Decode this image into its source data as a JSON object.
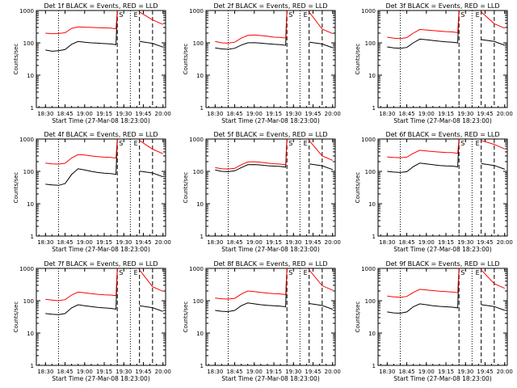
{
  "figure": {
    "background": "#ffffff",
    "ylabel": "Counts/sec",
    "xlabel": "Start Time (27-Mar-08 18:23:00)",
    "event_color": "#000000",
    "lld_color": "#ff0000",
    "markers": [
      "S",
      "E"
    ]
  },
  "chart_data": [
    {
      "type": "line",
      "title": "Det 1f BLACK = Events, RED = LLD",
      "xlabel": "Start Time (27-Mar-08 18:23:00)",
      "ylabel": "Counts/sec",
      "ylim": [
        1,
        1000
      ],
      "yscale": "log",
      "x": [
        "18:30",
        "18:35",
        "18:40",
        "18:45",
        "18:50",
        "18:55",
        "19:00",
        "19:05",
        "19:10",
        "19:15",
        "19:20"
      ],
      "xticks": [
        "18:30",
        "18:45",
        "19:00",
        "19:15",
        "19:30",
        "19:45",
        "20:00"
      ],
      "series": [
        {
          "name": "BLACK",
          "values": [
            60,
            55,
            57,
            62,
            90,
            110,
            105,
            100,
            98,
            95,
            92
          ]
        },
        {
          "name": "RED",
          "values": [
            200,
            190,
            195,
            205,
            280,
            310,
            305,
            300,
            295,
            290,
            285
          ]
        }
      ]
    },
    {
      "type": "line",
      "title": "Det 2f BLACK = Events, RED = LLD",
      "xlabel": "Start Time (27-Mar-08 18:23:00)",
      "ylabel": "Counts/sec",
      "ylim": [
        1,
        1000
      ],
      "yscale": "log",
      "x": [
        "18:30",
        "18:35",
        "18:40",
        "18:45",
        "18:50",
        "18:55",
        "19:00",
        "19:05",
        "19:10",
        "19:15",
        "19:20"
      ],
      "xticks": [
        "18:30",
        "18:45",
        "19:00",
        "19:15",
        "19:30",
        "19:45",
        "20:00"
      ],
      "series": [
        {
          "name": "BLACK",
          "values": [
            70,
            65,
            63,
            68,
            85,
            100,
            102,
            98,
            94,
            90,
            88
          ]
        },
        {
          "name": "RED",
          "values": [
            110,
            100,
            98,
            105,
            140,
            170,
            175,
            168,
            160,
            150,
            148
          ]
        }
      ]
    },
    {
      "type": "line",
      "title": "Det 3f BLACK = Events, RED = LLD",
      "xlabel": "Start Time (27-Mar-08 18:23:00)",
      "ylabel": "Counts/sec",
      "ylim": [
        1,
        1000
      ],
      "yscale": "log",
      "x": [
        "18:30",
        "18:35",
        "18:40",
        "18:45",
        "18:50",
        "18:55",
        "19:00",
        "19:05",
        "19:10",
        "19:15",
        "19:20"
      ],
      "xticks": [
        "18:30",
        "18:45",
        "19:00",
        "19:15",
        "19:30",
        "19:45",
        "20:00"
      ],
      "series": [
        {
          "name": "BLACK",
          "values": [
            75,
            70,
            68,
            72,
            100,
            130,
            125,
            118,
            112,
            108,
            105
          ]
        },
        {
          "name": "RED",
          "values": [
            150,
            140,
            135,
            145,
            200,
            260,
            250,
            240,
            230,
            222,
            218
          ]
        }
      ]
    },
    {
      "type": "line",
      "title": "Det 4f BLACK = Events, RED = LLD",
      "xlabel": "Start Time (27-Mar-08 18:23:00)",
      "ylabel": "Counts/sec",
      "ylim": [
        1,
        1000
      ],
      "yscale": "log",
      "x": [
        "18:30",
        "18:35",
        "18:40",
        "18:45",
        "18:50",
        "18:55",
        "19:00",
        "19:05",
        "19:10",
        "19:15",
        "19:20"
      ],
      "xticks": [
        "18:30",
        "18:45",
        "19:00",
        "19:15",
        "19:30",
        "19:45",
        "20:00"
      ],
      "series": [
        {
          "name": "BLACK",
          "values": [
            40,
            38,
            37,
            42,
            80,
            120,
            110,
            100,
            92,
            88,
            85
          ]
        },
        {
          "name": "RED",
          "values": [
            180,
            170,
            168,
            178,
            260,
            330,
            320,
            300,
            285,
            275,
            270
          ]
        }
      ]
    },
    {
      "type": "line",
      "title": "Det 5f BLACK = Events, RED = LLD",
      "xlabel": "Start Time (27-Mar-08 18:23:00)",
      "ylabel": "Counts/sec",
      "ylim": [
        1,
        1000
      ],
      "yscale": "log",
      "x": [
        "18:30",
        "18:35",
        "18:40",
        "18:45",
        "18:50",
        "18:55",
        "19:00",
        "19:05",
        "19:10",
        "19:15",
        "19:20"
      ],
      "xticks": [
        "18:30",
        "18:45",
        "19:00",
        "19:15",
        "19:30",
        "19:45",
        "20:00"
      ],
      "series": [
        {
          "name": "BLACK",
          "values": [
            110,
            100,
            98,
            104,
            130,
            160,
            162,
            158,
            150,
            145,
            142
          ]
        },
        {
          "name": "RED",
          "values": [
            130,
            120,
            118,
            124,
            160,
            195,
            198,
            190,
            180,
            172,
            168
          ]
        }
      ]
    },
    {
      "type": "line",
      "title": "Det 6f BLACK = Events, RED = LLD",
      "xlabel": "Start Time (27-Mar-08 18:23:00)",
      "ylabel": "Counts/sec",
      "ylim": [
        1,
        1000
      ],
      "yscale": "log",
      "x": [
        "18:30",
        "18:35",
        "18:40",
        "18:45",
        "18:50",
        "18:55",
        "19:00",
        "19:05",
        "19:10",
        "19:15",
        "19:20"
      ],
      "xticks": [
        "18:30",
        "18:45",
        "19:00",
        "19:15",
        "19:30",
        "19:45",
        "20:00"
      ],
      "series": [
        {
          "name": "BLACK",
          "values": [
            100,
            95,
            92,
            98,
            140,
            180,
            170,
            160,
            152,
            148,
            145
          ]
        },
        {
          "name": "RED",
          "values": [
            280,
            270,
            265,
            275,
            360,
            450,
            430,
            410,
            395,
            385,
            380
          ]
        }
      ]
    },
    {
      "type": "line",
      "title": "Det 7f BLACK = Events, RED = LLD",
      "xlabel": "Start Time (27-Mar-08 18:23:00)",
      "ylabel": "Counts/sec",
      "ylim": [
        1,
        1000
      ],
      "yscale": "log",
      "x": [
        "18:30",
        "18:35",
        "18:40",
        "18:45",
        "18:50",
        "18:55",
        "19:00",
        "19:05",
        "19:10",
        "19:15",
        "19:20"
      ],
      "xticks": [
        "18:30",
        "18:45",
        "19:00",
        "19:15",
        "19:30",
        "19:45",
        "20:00"
      ],
      "series": [
        {
          "name": "BLACK",
          "values": [
            40,
            38,
            37,
            40,
            60,
            75,
            70,
            66,
            62,
            60,
            58
          ]
        },
        {
          "name": "RED",
          "values": [
            110,
            105,
            100,
            108,
            150,
            185,
            175,
            165,
            158,
            152,
            150
          ]
        }
      ]
    },
    {
      "type": "line",
      "title": "Det 8f BLACK = Events, RED = LLD",
      "xlabel": "Start Time (27-Mar-08 18:23:00)",
      "ylabel": "Counts/sec",
      "ylim": [
        1,
        1000
      ],
      "yscale": "log",
      "x": [
        "18:30",
        "18:35",
        "18:40",
        "18:45",
        "18:50",
        "18:55",
        "19:00",
        "19:05",
        "19:10",
        "19:15",
        "19:20"
      ],
      "xticks": [
        "18:30",
        "18:45",
        "19:00",
        "19:15",
        "19:30",
        "19:45",
        "20:00"
      ],
      "series": [
        {
          "name": "BLACK",
          "values": [
            50,
            47,
            46,
            50,
            70,
            85,
            80,
            75,
            72,
            70,
            68
          ]
        },
        {
          "name": "RED",
          "values": [
            120,
            115,
            112,
            118,
            160,
            200,
            190,
            180,
            172,
            166,
            162
          ]
        }
      ]
    },
    {
      "type": "line",
      "title": "Det 9f BLACK = Events, RED = LLD",
      "xlabel": "Start Time (27-Mar-08 18:23:00)",
      "ylabel": "Counts/sec",
      "ylim": [
        1,
        1000
      ],
      "yscale": "log",
      "x": [
        "18:30",
        "18:35",
        "18:40",
        "18:45",
        "18:50",
        "18:55",
        "19:00",
        "19:05",
        "19:10",
        "19:15",
        "19:20"
      ],
      "xticks": [
        "18:30",
        "18:45",
        "19:00",
        "19:15",
        "19:30",
        "19:45",
        "20:00"
      ],
      "series": [
        {
          "name": "BLACK",
          "values": [
            45,
            42,
            41,
            45,
            65,
            80,
            75,
            70,
            67,
            65,
            63
          ]
        },
        {
          "name": "RED",
          "values": [
            140,
            132,
            128,
            136,
            180,
            225,
            215,
            205,
            196,
            190,
            186
          ]
        }
      ]
    }
  ]
}
